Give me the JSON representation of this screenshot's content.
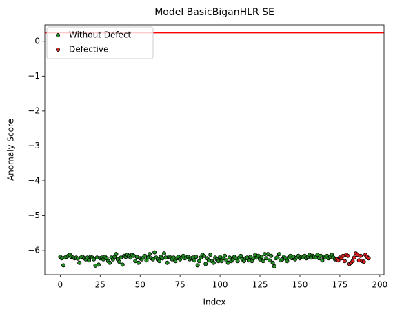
{
  "chart_data": {
    "type": "scatter",
    "title": "Model BasicBiganHLR SE",
    "x_label": "Index",
    "y_label": "Anomaly Score",
    "xlim": [
      -9.65,
      202.65
    ],
    "ylim": [
      -6.69,
      0.47
    ],
    "xticks": [
      0,
      25,
      50,
      75,
      100,
      125,
      150,
      175,
      200
    ],
    "yticks": [
      {
        "value": -6,
        "label": "−6"
      },
      {
        "value": -5,
        "label": "−5"
      },
      {
        "value": -4,
        "label": "−4"
      },
      {
        "value": -3,
        "label": "−3"
      },
      {
        "value": -2,
        "label": "−2"
      },
      {
        "value": -1,
        "label": "−1"
      },
      0
    ],
    "legend": "upper left",
    "hline": {
      "value": 0.24,
      "color": "#ff0000"
    },
    "series": [
      {
        "name": "Without Defect",
        "color": "#228b22",
        "x": [
          0,
          1,
          2,
          3,
          4,
          5,
          6,
          7,
          8,
          9,
          10,
          11,
          12,
          13,
          14,
          15,
          16,
          17,
          18,
          19,
          20,
          21,
          22,
          23,
          24,
          25,
          26,
          27,
          28,
          29,
          30,
          31,
          32,
          33,
          34,
          35,
          36,
          37,
          38,
          39,
          40,
          41,
          42,
          43,
          44,
          45,
          46,
          47,
          48,
          49,
          50,
          51,
          52,
          53,
          54,
          55,
          56,
          57,
          58,
          59,
          60,
          61,
          62,
          63,
          64,
          65,
          66,
          67,
          68,
          69,
          70,
          71,
          72,
          73,
          74,
          75,
          76,
          77,
          78,
          79,
          80,
          81,
          82,
          83,
          84,
          85,
          86,
          87,
          88,
          89,
          90,
          91,
          92,
          93,
          94,
          95,
          96,
          97,
          98,
          99,
          100,
          101,
          102,
          103,
          104,
          105,
          106,
          107,
          108,
          109,
          110,
          111,
          112,
          113,
          114,
          115,
          116,
          117,
          118,
          119,
          120,
          121,
          122,
          123,
          124,
          125,
          126,
          127,
          128,
          129,
          130,
          131,
          132,
          133,
          134,
          135,
          136,
          137,
          138,
          139,
          140,
          141,
          142,
          143,
          144,
          145,
          146,
          147,
          148,
          149,
          150,
          151,
          152,
          153,
          154,
          155,
          156,
          157,
          158,
          159,
          160,
          161,
          162,
          163,
          164,
          165,
          166,
          167,
          168,
          169,
          170,
          171,
          172
        ],
        "values": [
          -6.18,
          -6.22,
          -6.42,
          -6.2,
          -6.18,
          -6.15,
          -6.12,
          -6.18,
          -6.2,
          -6.22,
          -6.2,
          -6.23,
          -6.35,
          -6.2,
          -6.18,
          -6.22,
          -6.25,
          -6.2,
          -6.28,
          -6.18,
          -6.2,
          -6.25,
          -6.43,
          -6.2,
          -6.4,
          -6.22,
          -6.2,
          -6.25,
          -6.18,
          -6.22,
          -6.3,
          -6.35,
          -6.2,
          -6.25,
          -6.18,
          -6.1,
          -6.25,
          -6.32,
          -6.2,
          -6.4,
          -6.15,
          -6.18,
          -6.12,
          -6.15,
          -6.2,
          -6.12,
          -6.15,
          -6.3,
          -6.18,
          -6.35,
          -6.22,
          -6.25,
          -6.2,
          -6.15,
          -6.28,
          -6.2,
          -6.1,
          -6.22,
          -6.25,
          -6.05,
          -6.2,
          -6.25,
          -6.3,
          -6.18,
          -6.22,
          -6.08,
          -6.2,
          -6.35,
          -6.18,
          -6.2,
          -6.25,
          -6.2,
          -6.3,
          -6.22,
          -6.18,
          -6.25,
          -6.2,
          -6.15,
          -6.22,
          -6.2,
          -6.18,
          -6.25,
          -6.22,
          -6.2,
          -6.28,
          -6.18,
          -6.42,
          -6.3,
          -6.2,
          -6.12,
          -6.15,
          -6.38,
          -6.22,
          -6.28,
          -6.12,
          -6.3,
          -6.35,
          -6.2,
          -6.25,
          -6.3,
          -6.18,
          -6.3,
          -6.22,
          -6.15,
          -6.28,
          -6.35,
          -6.2,
          -6.3,
          -6.25,
          -6.18,
          -6.22,
          -6.3,
          -6.2,
          -6.15,
          -6.25,
          -6.3,
          -6.22,
          -6.2,
          -6.28,
          -6.18,
          -6.3,
          -6.22,
          -6.12,
          -6.2,
          -6.15,
          -6.25,
          -6.18,
          -6.3,
          -6.1,
          -6.22,
          -6.1,
          -6.28,
          -6.15,
          -6.35,
          -6.45,
          -6.22,
          -6.2,
          -6.1,
          -6.28,
          -6.25,
          -6.18,
          -6.22,
          -6.3,
          -6.2,
          -6.15,
          -6.22,
          -6.18,
          -6.25,
          -6.2,
          -6.15,
          -6.22,
          -6.18,
          -6.2,
          -6.15,
          -6.22,
          -6.18,
          -6.12,
          -6.2,
          -6.15,
          -6.18,
          -6.2,
          -6.12,
          -6.22,
          -6.15,
          -6.28,
          -6.18,
          -6.2,
          -6.15,
          -6.22,
          -6.18,
          -6.12,
          -6.2,
          -6.25
        ]
      },
      {
        "name": "Defective",
        "color": "#d62020",
        "x": [
          173,
          174,
          175,
          176,
          177,
          178,
          179,
          180,
          181,
          182,
          183,
          184,
          185,
          186,
          187,
          188,
          189,
          190,
          191,
          192,
          193
        ],
        "values": [
          -6.25,
          -6.28,
          -6.2,
          -6.22,
          -6.15,
          -6.3,
          -6.12,
          -6.15,
          -6.38,
          -6.35,
          -6.3,
          -6.2,
          -6.08,
          -6.12,
          -6.28,
          -6.15,
          -6.3,
          -6.32,
          -6.12,
          -6.18,
          -6.22
        ]
      }
    ]
  }
}
